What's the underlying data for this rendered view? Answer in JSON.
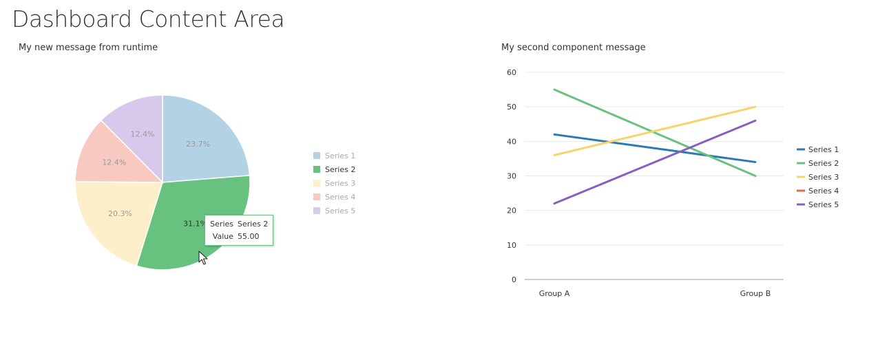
{
  "page": {
    "title": "Dashboard Content Area"
  },
  "colors": {
    "series": [
      "#2a7ab4",
      "#67c27f",
      "#f6d46a",
      "#e8694a",
      "#8c5cbf"
    ],
    "pie_fill": [
      "#b3d2e6",
      "#67c27f",
      "#fcefc9",
      "#f7c9c0",
      "#d7c9ec"
    ],
    "grid": "#e8e8e8",
    "axis": "#999999"
  },
  "chart_data": [
    {
      "type": "pie",
      "title": "My new message from runtime",
      "labels": [
        "Series 1",
        "Series 2",
        "Series 3",
        "Series 4",
        "Series 5"
      ],
      "values": [
        42,
        55,
        36,
        22,
        22
      ],
      "percent_labels": [
        "23.7%",
        "31.1%",
        "20.3%",
        "12.4%",
        "12.4%"
      ],
      "highlighted": "Series 2",
      "legend": "right",
      "tooltip": {
        "series_key": "Series",
        "series_value": "Series 2",
        "value_key": "Value",
        "value_value": "55.00"
      }
    },
    {
      "type": "line",
      "title": "My second component message",
      "categories": [
        "Group A",
        "Group B"
      ],
      "series": [
        {
          "name": "Series 1",
          "values": [
            42,
            34
          ]
        },
        {
          "name": "Series 2",
          "values": [
            55,
            30
          ]
        },
        {
          "name": "Series 3",
          "values": [
            36,
            50
          ]
        },
        {
          "name": "Series 4",
          "values": [
            null,
            null
          ]
        },
        {
          "name": "Series 5",
          "values": [
            22,
            46
          ]
        }
      ],
      "ylim": [
        0,
        60
      ],
      "yticks": [
        "0",
        "10",
        "20",
        "30",
        "40",
        "50",
        "60"
      ],
      "grid": true,
      "legend": "right"
    }
  ]
}
